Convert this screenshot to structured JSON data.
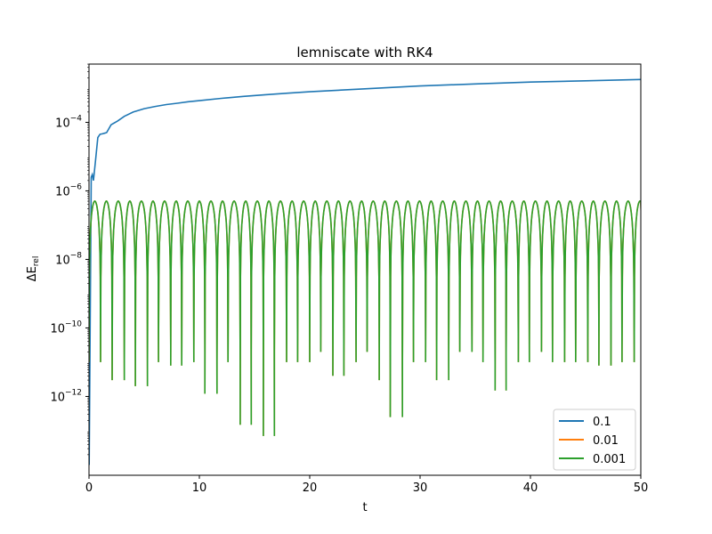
{
  "chart_data": {
    "type": "line",
    "title": "lemniscate with RK4",
    "xlabel": "t",
    "ylabel": "ΔE_rel",
    "ylabel_main": "ΔE",
    "ylabel_sub": "rel",
    "xlim": [
      0,
      50
    ],
    "ylim_log10": [
      -14.3,
      -2.3
    ],
    "yscale": "log",
    "grid": false,
    "legend_position": "lower right",
    "x_ticks": [
      0,
      10,
      20,
      30,
      40,
      50
    ],
    "x_tick_labels": [
      "0",
      "10",
      "20",
      "30",
      "40",
      "50"
    ],
    "y_ticks_log10": [
      -4,
      -6,
      -8,
      -10,
      -12
    ],
    "y_tick_labels": [
      {
        "base": "10",
        "exp": "−4"
      },
      {
        "base": "10",
        "exp": "−6"
      },
      {
        "base": "10",
        "exp": "−8"
      },
      {
        "base": "10",
        "exp": "−10"
      },
      {
        "base": "10",
        "exp": "−12"
      }
    ],
    "series": [
      {
        "name": "0.1",
        "color": "#1f77b4",
        "x": [
          0.02,
          0.2,
          0.3,
          0.4,
          0.6,
          0.8,
          1.0,
          1.2,
          1.4,
          1.6,
          2.0,
          2.6,
          3.2,
          4.0,
          5.0,
          6.0,
          7.0,
          8.0,
          9.0,
          10.0,
          12.0,
          14.0,
          16.0,
          18.0,
          20.0,
          25.0,
          30.0,
          35.0,
          40.0,
          45.0,
          50.0
        ],
        "y": [
          1e-14,
          2.5e-06,
          3e-06,
          2e-06,
          8e-06,
          3.6e-05,
          4.5e-05,
          4.6e-05,
          4.8e-05,
          5e-05,
          8.5e-05,
          0.00011,
          0.00015,
          0.0002,
          0.00025,
          0.00029,
          0.00033,
          0.00036,
          0.0004,
          0.00043,
          0.0005,
          0.00057,
          0.00064,
          0.00071,
          0.00078,
          0.00095,
          0.00115,
          0.00132,
          0.0015,
          0.00163,
          0.00178
        ]
      },
      {
        "name": "0.01",
        "color": "#ff7f0e",
        "peak": 5e-07,
        "period": 1.05,
        "dips_x": [
          1.05,
          2.1,
          3.2,
          4.2,
          5.3,
          6.3,
          7.4,
          8.4,
          9.5,
          10.5,
          11.6,
          12.6,
          13.7,
          14.7,
          15.8,
          16.8,
          17.9,
          18.9,
          20.0,
          21.0,
          22.1,
          23.1,
          24.2,
          25.2,
          26.3,
          27.3,
          28.4,
          29.4,
          30.5,
          31.5,
          32.6,
          33.6,
          34.7,
          35.7,
          36.8,
          37.8,
          38.9,
          39.9,
          41.0,
          42.0,
          43.1,
          44.1,
          45.2,
          46.2,
          47.3,
          48.3,
          49.4
        ],
        "dips_y": [
          1e-11,
          3e-12,
          1e-11,
          2e-12,
          1e-11,
          3e-11,
          8e-12,
          1e-11,
          2e-11,
          1.2e-12,
          1e-11,
          1e-11,
          1.5e-13,
          2e-11,
          7e-14,
          2e-11,
          1e-11,
          1e-11,
          3e-11,
          2e-11,
          4e-12,
          1e-11,
          2e-11,
          2e-11,
          3e-12,
          2.5e-13,
          1e-11,
          4e-11,
          1e-11,
          3e-12,
          2e-11,
          2e-11,
          2e-11,
          1e-11,
          1.5e-12,
          2e-11,
          1e-11,
          3e-11,
          2e-11,
          1e-11,
          2e-11,
          1e-11,
          5e-11,
          8e-12,
          1e-11,
          2e-11,
          1e-11
        ]
      },
      {
        "name": "0.001",
        "color": "#2ca02c",
        "peak": 5e-07,
        "period": 1.05,
        "dips_x": [
          1.05,
          2.1,
          3.2,
          4.2,
          5.3,
          6.3,
          7.4,
          8.4,
          9.5,
          10.5,
          11.6,
          12.6,
          13.7,
          14.7,
          15.8,
          16.8,
          17.9,
          18.9,
          20.0,
          21.0,
          22.1,
          23.1,
          24.2,
          25.2,
          26.3,
          27.3,
          28.4,
          29.4,
          30.5,
          31.5,
          32.6,
          33.6,
          34.7,
          35.7,
          36.8,
          37.8,
          38.9,
          39.9,
          41.0,
          42.0,
          43.1,
          44.1,
          45.2,
          46.2,
          47.3,
          48.3,
          49.4
        ],
        "dips_y": [
          1e-11,
          3e-12,
          1e-11,
          2e-12,
          1e-11,
          3e-11,
          8e-12,
          1e-11,
          2e-11,
          1.2e-12,
          1e-11,
          1e-11,
          1.5e-13,
          2e-11,
          7e-14,
          2e-11,
          1e-11,
          1e-11,
          3e-11,
          2e-11,
          4e-12,
          1e-11,
          2e-11,
          2e-11,
          3e-12,
          2.5e-13,
          1e-11,
          4e-11,
          1e-11,
          3e-12,
          2e-11,
          2e-11,
          2e-11,
          1e-11,
          1.5e-12,
          2e-11,
          1e-11,
          3e-11,
          2e-11,
          1e-11,
          2e-11,
          1e-11,
          5e-11,
          8e-12,
          1e-11,
          2e-11,
          1e-11
        ]
      }
    ]
  }
}
